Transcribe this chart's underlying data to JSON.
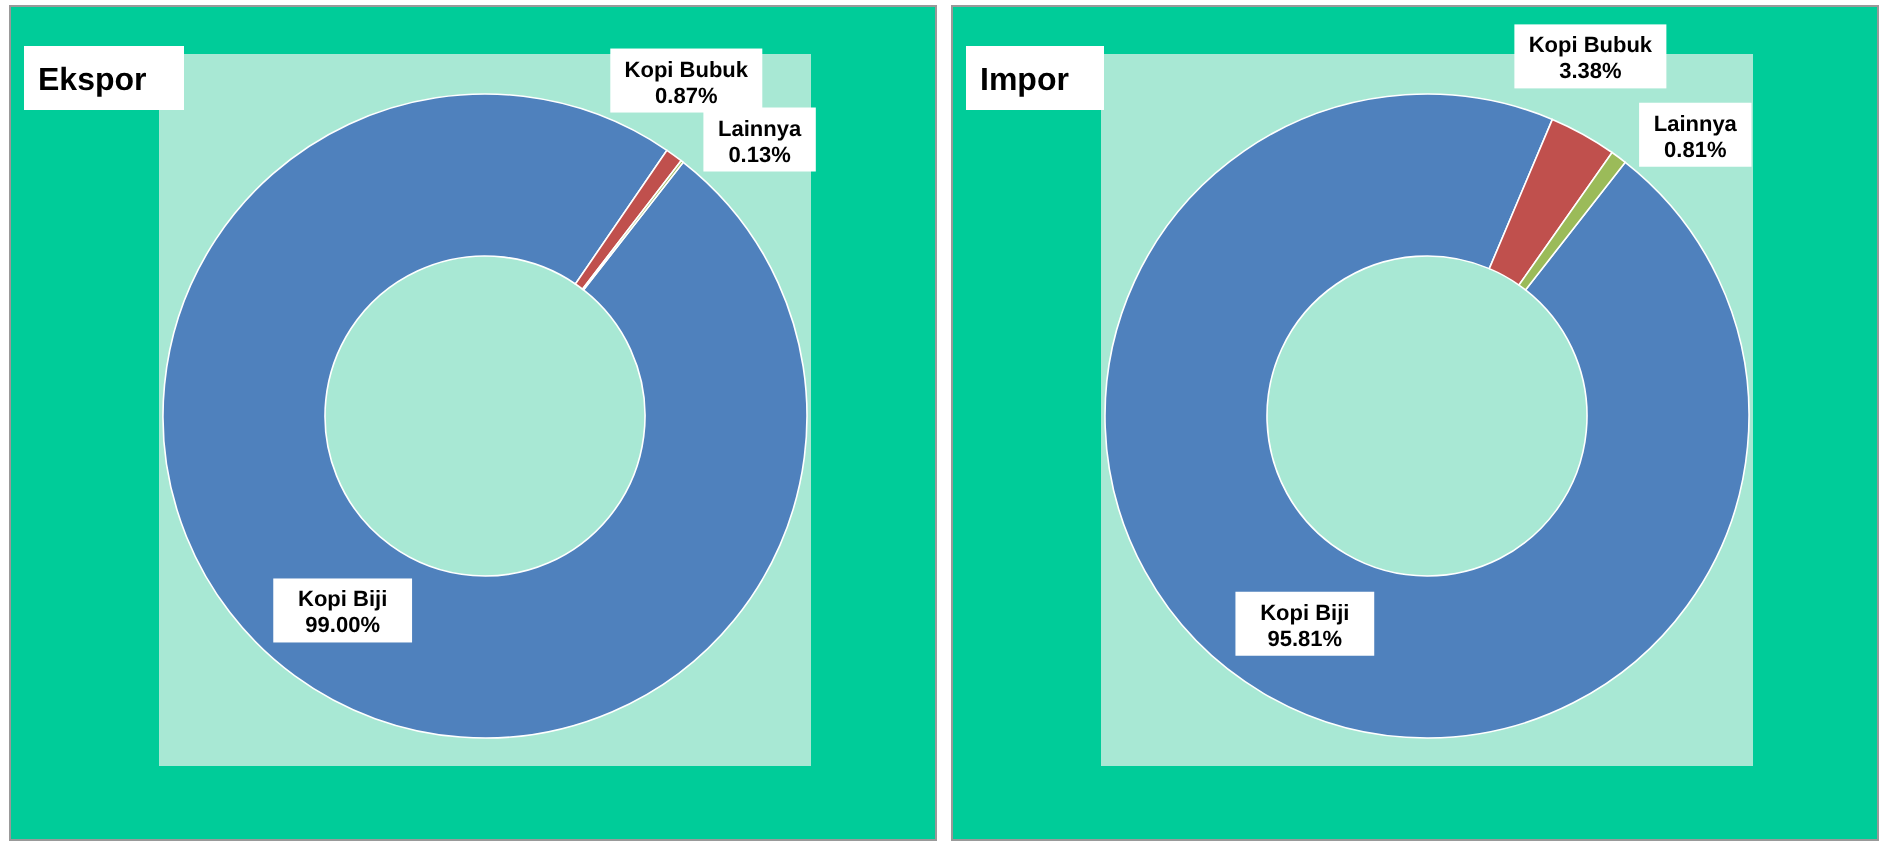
{
  "chart_data": [
    {
      "type": "donut",
      "title": "Ekspor",
      "categories": [
        "Kopi Biji",
        "Kopi Bubuk",
        "Lainnya"
      ],
      "values": [
        99.0,
        0.87,
        0.13
      ],
      "value_labels": [
        "99.00%",
        "0.87%",
        "0.13%"
      ],
      "colors": [
        "#4f81bd",
        "#c0504d",
        "#9bbb59"
      ]
    },
    {
      "type": "donut",
      "title": "Impor",
      "categories": [
        "Kopi Biji",
        "Kopi Bubuk",
        "Lainnya"
      ],
      "values": [
        95.81,
        3.38,
        0.81
      ],
      "value_labels": [
        "95.81%",
        "3.38%",
        "0.81%"
      ],
      "colors": [
        "#4f81bd",
        "#c0504d",
        "#9bbb59"
      ]
    }
  ]
}
